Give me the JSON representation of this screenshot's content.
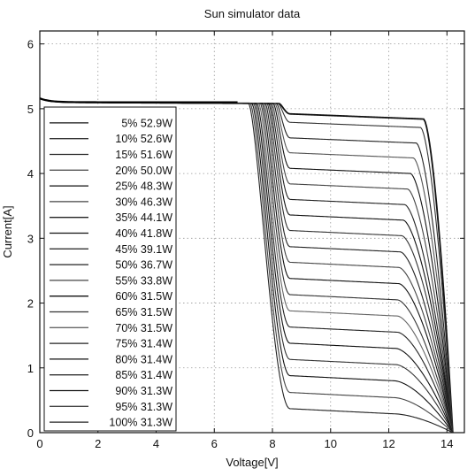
{
  "chart_data": {
    "type": "line",
    "title": "Sun simulator data",
    "xlabel": "Voltage[V]",
    "ylabel": "Current[A]",
    "xlim": [
      0,
      14.6
    ],
    "ylim": [
      0,
      6.2
    ],
    "xticks": [
      0,
      2,
      4,
      6,
      8,
      10,
      12,
      14
    ],
    "yticks": [
      0,
      1,
      2,
      3,
      4,
      5,
      6
    ],
    "grid": true,
    "legend_position": "left",
    "isc": 5.1,
    "voc": 14.2,
    "series": [
      {
        "name": "5% 52.9W",
        "step": 4.92,
        "knee": 13.2
      },
      {
        "name": "10% 52.6W",
        "step": 4.79,
        "knee": 13.1
      },
      {
        "name": "15% 51.6W",
        "step": 4.55,
        "knee": 12.95
      },
      {
        "name": "20% 50.0W",
        "step": 4.32,
        "knee": 12.85
      },
      {
        "name": "25% 48.3W",
        "step": 4.08,
        "knee": 12.75
      },
      {
        "name": "30% 46.3W",
        "step": 3.84,
        "knee": 12.65
      },
      {
        "name": "35% 44.1W",
        "step": 3.6,
        "knee": 12.55
      },
      {
        "name": "40% 41.8W",
        "step": 3.36,
        "knee": 12.5
      },
      {
        "name": "45% 39.1W",
        "step": 3.12,
        "knee": 12.45
      },
      {
        "name": "50% 36.7W",
        "step": 2.87,
        "knee": 12.4
      },
      {
        "name": "55% 33.8W",
        "step": 2.63,
        "knee": 12.35
      },
      {
        "name": "60% 31.5W",
        "step": 2.38,
        "knee": 12.35
      },
      {
        "name": "65% 31.5W",
        "step": 2.13,
        "knee": 12.3
      },
      {
        "name": "70% 31.5W",
        "step": 1.88,
        "knee": 12.3
      },
      {
        "name": "75% 31.4W",
        "step": 1.63,
        "knee": 12.3
      },
      {
        "name": "80% 31.4W",
        "step": 1.38,
        "knee": 12.25
      },
      {
        "name": "85% 31.4W",
        "step": 1.13,
        "knee": 12.25
      },
      {
        "name": "90% 31.3W",
        "step": 0.88,
        "knee": 12.2
      },
      {
        "name": "95% 31.3W",
        "step": 0.62,
        "knee": 12.2
      },
      {
        "name": "100% 31.3W",
        "step": 0.37,
        "knee": 12.2
      }
    ]
  }
}
